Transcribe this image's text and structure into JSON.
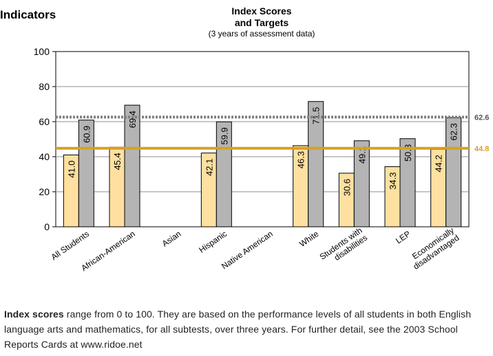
{
  "heading": "Indicators",
  "chart_data": {
    "type": "bar",
    "title_lines": [
      "Index Scores",
      "and Targets"
    ],
    "subtitle": "(3 years of assessment data)",
    "categories": [
      "All Students",
      "African-American",
      "Asian",
      "Hispanic",
      "Native American",
      "White",
      "Students with disabilities",
      "LEP",
      "Economically disadvantaged"
    ],
    "category_label_lines": [
      [
        "All Students"
      ],
      [
        "African-American"
      ],
      [
        "Asian"
      ],
      [
        "Hispanic"
      ],
      [
        "Native American"
      ],
      [
        "White"
      ],
      [
        "Students with",
        "disabilities"
      ],
      [
        "LEP"
      ],
      [
        "Economically",
        "disadvantaged"
      ]
    ],
    "series": [
      {
        "values": [
          41.0,
          45.4,
          null,
          42.1,
          null,
          46.3,
          30.6,
          34.3,
          44.2
        ],
        "labels": [
          "41.0",
          "45.4",
          "",
          "42.1",
          "",
          "46.3",
          "30.6",
          "34.3",
          "44.2"
        ],
        "color": "#FFE0A0"
      },
      {
        "values": [
          60.9,
          69.4,
          null,
          59.9,
          null,
          71.5,
          49.1,
          50.3,
          62.3
        ],
        "labels": [
          "60.9",
          "69.4",
          "",
          "59.9",
          "",
          "71.5",
          "49.1",
          "50.3",
          "62.3"
        ],
        "color": "#B4B4B4"
      }
    ],
    "target_lines": [
      {
        "value": 62.6,
        "label": "62.6",
        "style": "dotted",
        "color": "#7F7F7F"
      },
      {
        "value": 44.8,
        "label": "44.8",
        "style": "solid",
        "color": "#D9A020"
      }
    ],
    "ylim": [
      0,
      100
    ],
    "yticks": [
      "0",
      "20",
      "40",
      "60",
      "80",
      "100"
    ],
    "grid": true
  },
  "footnote": {
    "bold": "Index scores",
    "text": " range from 0 to 100.  They are based on the performance levels of all students in both English language arts and mathematics, for all subtests, over three years. For further detail, see the 2003 School Reports Cards at www.ridoe.net"
  }
}
